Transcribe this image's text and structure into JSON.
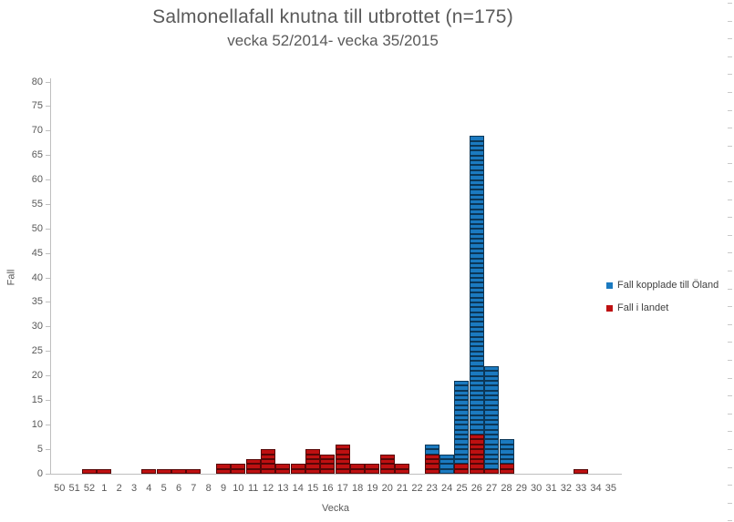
{
  "chart_data": {
    "type": "bar",
    "stacked": true,
    "title": "Salmonellafall knutna till utbrottet (n=175)",
    "subtitle": "vecka 52/2014- vecka 35/2015",
    "xlabel": "Vecka",
    "ylabel": "Fall",
    "ylim": [
      0,
      80
    ],
    "ytick_step": 5,
    "grid": false,
    "legend_position": "right",
    "n_total": 175,
    "categories": [
      "50",
      "51",
      "52",
      "1",
      "2",
      "3",
      "4",
      "5",
      "6",
      "7",
      "8",
      "9",
      "10",
      "11",
      "12",
      "13",
      "14",
      "15",
      "16",
      "17",
      "18",
      "19",
      "20",
      "21",
      "22",
      "23",
      "24",
      "25",
      "26",
      "27",
      "28",
      "29",
      "30",
      "31",
      "32",
      "33",
      "34",
      "35"
    ],
    "series": [
      {
        "name": "Fall kopplade till Öland",
        "color": "#1b7ac0",
        "stack_level": "top",
        "values": [
          0,
          0,
          0,
          0,
          0,
          0,
          0,
          0,
          0,
          0,
          0,
          0,
          0,
          0,
          0,
          0,
          0,
          0,
          0,
          0,
          0,
          0,
          0,
          0,
          0,
          2,
          4,
          17,
          61,
          21,
          5,
          0,
          0,
          0,
          0,
          0,
          0,
          0
        ]
      },
      {
        "name": "Fall i landet",
        "color": "#be1011",
        "stack_level": "bottom",
        "values": [
          0,
          0,
          1,
          1,
          0,
          0,
          1,
          1,
          1,
          1,
          0,
          2,
          2,
          3,
          5,
          2,
          2,
          5,
          4,
          6,
          2,
          2,
          4,
          2,
          0,
          4,
          0,
          2,
          8,
          1,
          2,
          0,
          0,
          0,
          0,
          1,
          0,
          0
        ]
      }
    ]
  }
}
